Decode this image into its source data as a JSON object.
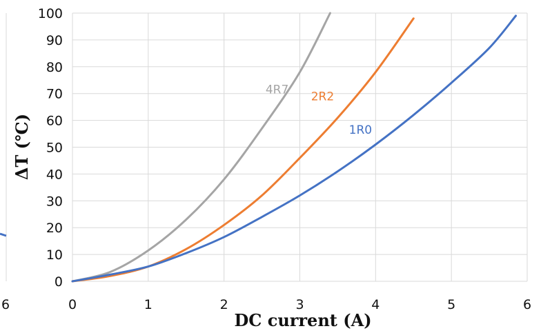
{
  "chart_data": {
    "type": "line",
    "title": "",
    "xlabel": "DC current (A)",
    "ylabel": "ΔT (℃)",
    "xlim": [
      0,
      6
    ],
    "ylim": [
      0,
      100
    ],
    "x_ticks": [
      "0",
      "1",
      "2",
      "3",
      "4",
      "5",
      "6"
    ],
    "y_ticks": [
      "0",
      "10",
      "20",
      "30",
      "40",
      "50",
      "60",
      "70",
      "80",
      "90",
      "100"
    ],
    "left_fragment": {
      "tick_label": "6"
    },
    "grid": true,
    "series": [
      {
        "name": "4R7",
        "color": "#a5a5a5",
        "x": [
          0,
          0.5,
          1,
          1.5,
          2,
          2.5,
          3,
          3.4
        ],
        "y": [
          0,
          3.5,
          11.5,
          23,
          38,
          57,
          78,
          100
        ]
      },
      {
        "name": "2R2",
        "color": "#ed7d31",
        "x": [
          0,
          0.5,
          1,
          1.5,
          2,
          2.5,
          3,
          3.5,
          4,
          4.5
        ],
        "y": [
          0,
          2,
          5.5,
          12,
          21,
          32,
          46,
          61,
          78,
          98
        ]
      },
      {
        "name": "1R0",
        "color": "#4472c4",
        "x": [
          0,
          0.5,
          1,
          1.5,
          2,
          2.5,
          3,
          3.5,
          4,
          4.5,
          5,
          5.5,
          5.85
        ],
        "y": [
          0,
          2.5,
          5.5,
          10.5,
          16.5,
          24,
          32,
          41,
          51,
          62,
          74,
          87,
          99
        ]
      }
    ]
  }
}
